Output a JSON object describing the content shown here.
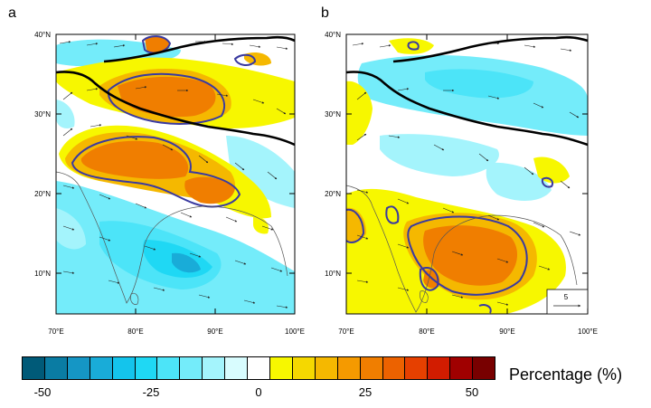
{
  "panels": [
    {
      "letter": "a",
      "lat_labels": [
        "40°N",
        "30°N",
        "20°N",
        "10°N"
      ],
      "lon_labels": [
        "70°E",
        "80°E",
        "90°E",
        "100°E"
      ]
    },
    {
      "letter": "b",
      "lat_labels": [
        "40°N",
        "30°N",
        "20°N",
        "10°N"
      ],
      "lon_labels": [
        "70°E",
        "80°E",
        "90°E",
        "100°E"
      ],
      "reference_vector_label": "5"
    }
  ],
  "colorbar": {
    "title": "Percentage (%)",
    "tick_labels": [
      "-50",
      "-25",
      "0",
      "25",
      "50"
    ],
    "colors": [
      "#005a78",
      "#0a7ca3",
      "#1596c5",
      "#19acd8",
      "#14c4ec",
      "#1fd8f4",
      "#4ce4f8",
      "#74ecfa",
      "#a4f4fc",
      "#d8fcfe",
      "#ffffff",
      "#f7f700",
      "#f5d800",
      "#f5b800",
      "#f59a00",
      "#f07e00",
      "#ec6200",
      "#e64000",
      "#d21c00",
      "#a00000",
      "#780000"
    ]
  }
}
